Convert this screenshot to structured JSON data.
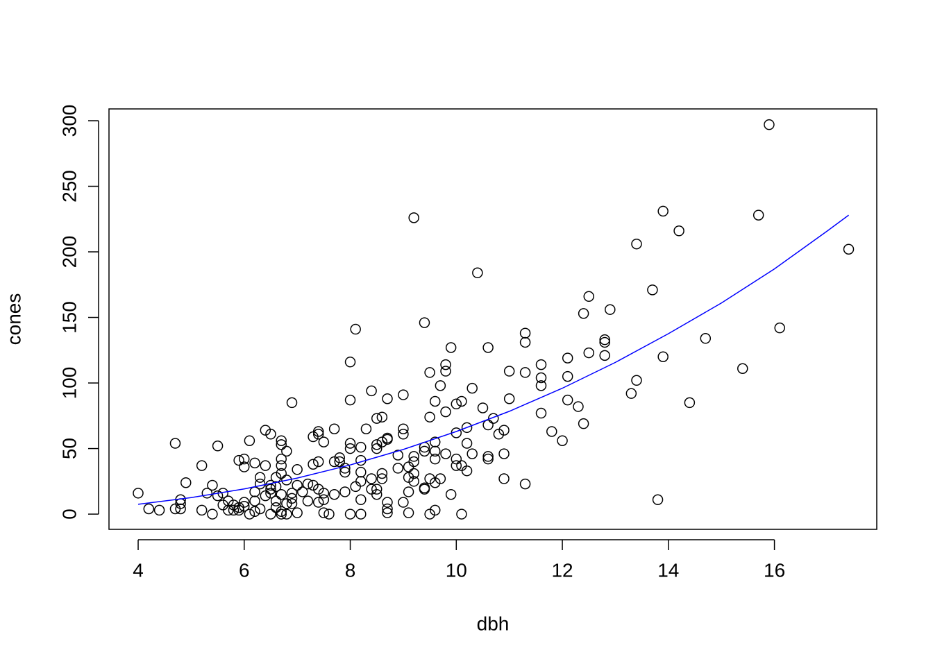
{
  "chart_data": {
    "type": "scatter",
    "xlabel": "dbh",
    "ylabel": "cones",
    "xlim": [
      3.45,
      17.93
    ],
    "ylim": [
      -11.6,
      309
    ],
    "xticks": [
      4,
      6,
      8,
      10,
      12,
      14,
      16
    ],
    "yticks": [
      0,
      50,
      100,
      150,
      200,
      250,
      300
    ],
    "color": "#000000",
    "x": [
      4.0,
      4.2,
      4.4,
      4.7,
      4.7,
      4.8,
      4.8,
      4.8,
      4.9,
      5.2,
      5.2,
      5.3,
      5.4,
      5.4,
      5.5,
      5.5,
      5.6,
      5.6,
      5.7,
      5.7,
      5.8,
      5.8,
      5.9,
      5.9,
      5.9,
      6.0,
      6.0,
      6.0,
      6.0,
      6.1,
      6.1,
      6.2,
      6.2,
      6.2,
      6.2,
      6.3,
      6.3,
      6.3,
      6.4,
      6.4,
      6.4,
      6.5,
      6.5,
      6.5,
      6.5,
      6.5,
      6.6,
      6.6,
      6.6,
      6.6,
      6.7,
      6.7,
      6.7,
      6.7,
      6.7,
      6.7,
      6.7,
      6.7,
      6.8,
      6.8,
      6.8,
      6.8,
      6.9,
      6.9,
      6.9,
      6.9,
      7.0,
      7.0,
      7.0,
      7.1,
      7.2,
      7.2,
      7.3,
      7.3,
      7.3,
      7.4,
      7.4,
      7.4,
      7.4,
      7.4,
      7.5,
      7.5,
      7.5,
      7.5,
      7.6,
      7.7,
      7.7,
      7.7,
      7.8,
      7.8,
      7.9,
      7.9,
      7.9,
      8.0,
      8.0,
      8.0,
      8.0,
      8.0,
      8.1,
      8.1,
      8.2,
      8.2,
      8.2,
      8.2,
      8.2,
      8.2,
      8.3,
      8.4,
      8.4,
      8.4,
      8.5,
      8.5,
      8.5,
      8.5,
      8.5,
      8.6,
      8.6,
      8.6,
      8.6,
      8.7,
      8.7,
      8.7,
      8.7,
      8.7,
      8.7,
      8.9,
      8.9,
      9.0,
      9.0,
      9.0,
      9.0,
      9.1,
      9.1,
      9.1,
      9.1,
      9.2,
      9.2,
      9.2,
      9.2,
      9.2,
      9.4,
      9.4,
      9.4,
      9.4,
      9.4,
      9.5,
      9.5,
      9.5,
      9.5,
      9.6,
      9.6,
      9.6,
      9.6,
      9.6,
      9.6,
      9.7,
      9.7,
      9.8,
      9.8,
      9.8,
      9.8,
      9.9,
      9.9,
      10.0,
      10.0,
      10.0,
      10.0,
      10.1,
      10.1,
      10.1,
      10.2,
      10.2,
      10.2,
      10.3,
      10.3,
      10.4,
      10.5,
      10.6,
      10.6,
      10.6,
      10.6,
      10.7,
      10.8,
      10.9,
      10.9,
      10.9,
      11.0,
      11.0,
      11.3,
      11.3,
      11.3,
      11.3,
      11.6,
      11.6,
      11.6,
      11.6,
      11.8,
      12.0,
      12.1,
      12.1,
      12.1,
      12.3,
      12.4,
      12.4,
      12.5,
      12.5,
      12.8,
      12.8,
      12.8,
      12.9,
      13.3,
      13.4,
      13.4,
      13.7,
      13.8,
      13.9,
      13.9,
      14.2,
      14.4,
      14.7,
      15.4,
      15.7,
      15.9,
      16.1,
      17.4
    ],
    "values": [
      16,
      4,
      3,
      54,
      4,
      11,
      8,
      4,
      24,
      37,
      3,
      16,
      22,
      0,
      52,
      14,
      16,
      7,
      10,
      3,
      3,
      7,
      41,
      5,
      3,
      42,
      36,
      9,
      6,
      56,
      0,
      39,
      17,
      10,
      2,
      28,
      23,
      4,
      64,
      37,
      14,
      61,
      22,
      19,
      16,
      0,
      28,
      21,
      10,
      5,
      56,
      53,
      42,
      37,
      31,
      15,
      2,
      0,
      48,
      26,
      8,
      0,
      85,
      16,
      12,
      8,
      34,
      22,
      1,
      17,
      23,
      10,
      59,
      38,
      22,
      63,
      61,
      40,
      19,
      9,
      55,
      16,
      11,
      1,
      0,
      65,
      40,
      15,
      43,
      40,
      35,
      32,
      17,
      116,
      87,
      54,
      50,
      0,
      141,
      21,
      51,
      41,
      32,
      25,
      11,
      0,
      65,
      94,
      27,
      19,
      73,
      53,
      50,
      19,
      15,
      74,
      55,
      31,
      27,
      88,
      58,
      57,
      9,
      4,
      1,
      45,
      35,
      91,
      65,
      61,
      9,
      36,
      28,
      17,
      1,
      226,
      44,
      40,
      31,
      25,
      146,
      51,
      48,
      20,
      19,
      108,
      74,
      27,
      0,
      86,
      55,
      48,
      42,
      24,
      3,
      98,
      27,
      114,
      109,
      78,
      46,
      127,
      15,
      84,
      62,
      42,
      37,
      86,
      37,
      0,
      66,
      54,
      33,
      96,
      46,
      184,
      81,
      127,
      68,
      44,
      42,
      73,
      61,
      64,
      46,
      27,
      109,
      88,
      138,
      131,
      108,
      23,
      114,
      104,
      98,
      77,
      63,
      56,
      119,
      105,
      87,
      82,
      153,
      69,
      166,
      123,
      133,
      131,
      121,
      156,
      92,
      206,
      102,
      171,
      11,
      231,
      120,
      216,
      85,
      134,
      111,
      228,
      297,
      142,
      202
    ],
    "fit": {
      "color": "#0000ff",
      "x": [
        4,
        5,
        6,
        7,
        8,
        9,
        10,
        11,
        12,
        13,
        14,
        15,
        16,
        17,
        17.4
      ],
      "values": [
        7.5,
        12.6,
        19.2,
        27.5,
        37.5,
        49.3,
        63,
        78.4,
        96,
        115.7,
        137.6,
        161,
        187,
        216,
        228
      ]
    }
  }
}
